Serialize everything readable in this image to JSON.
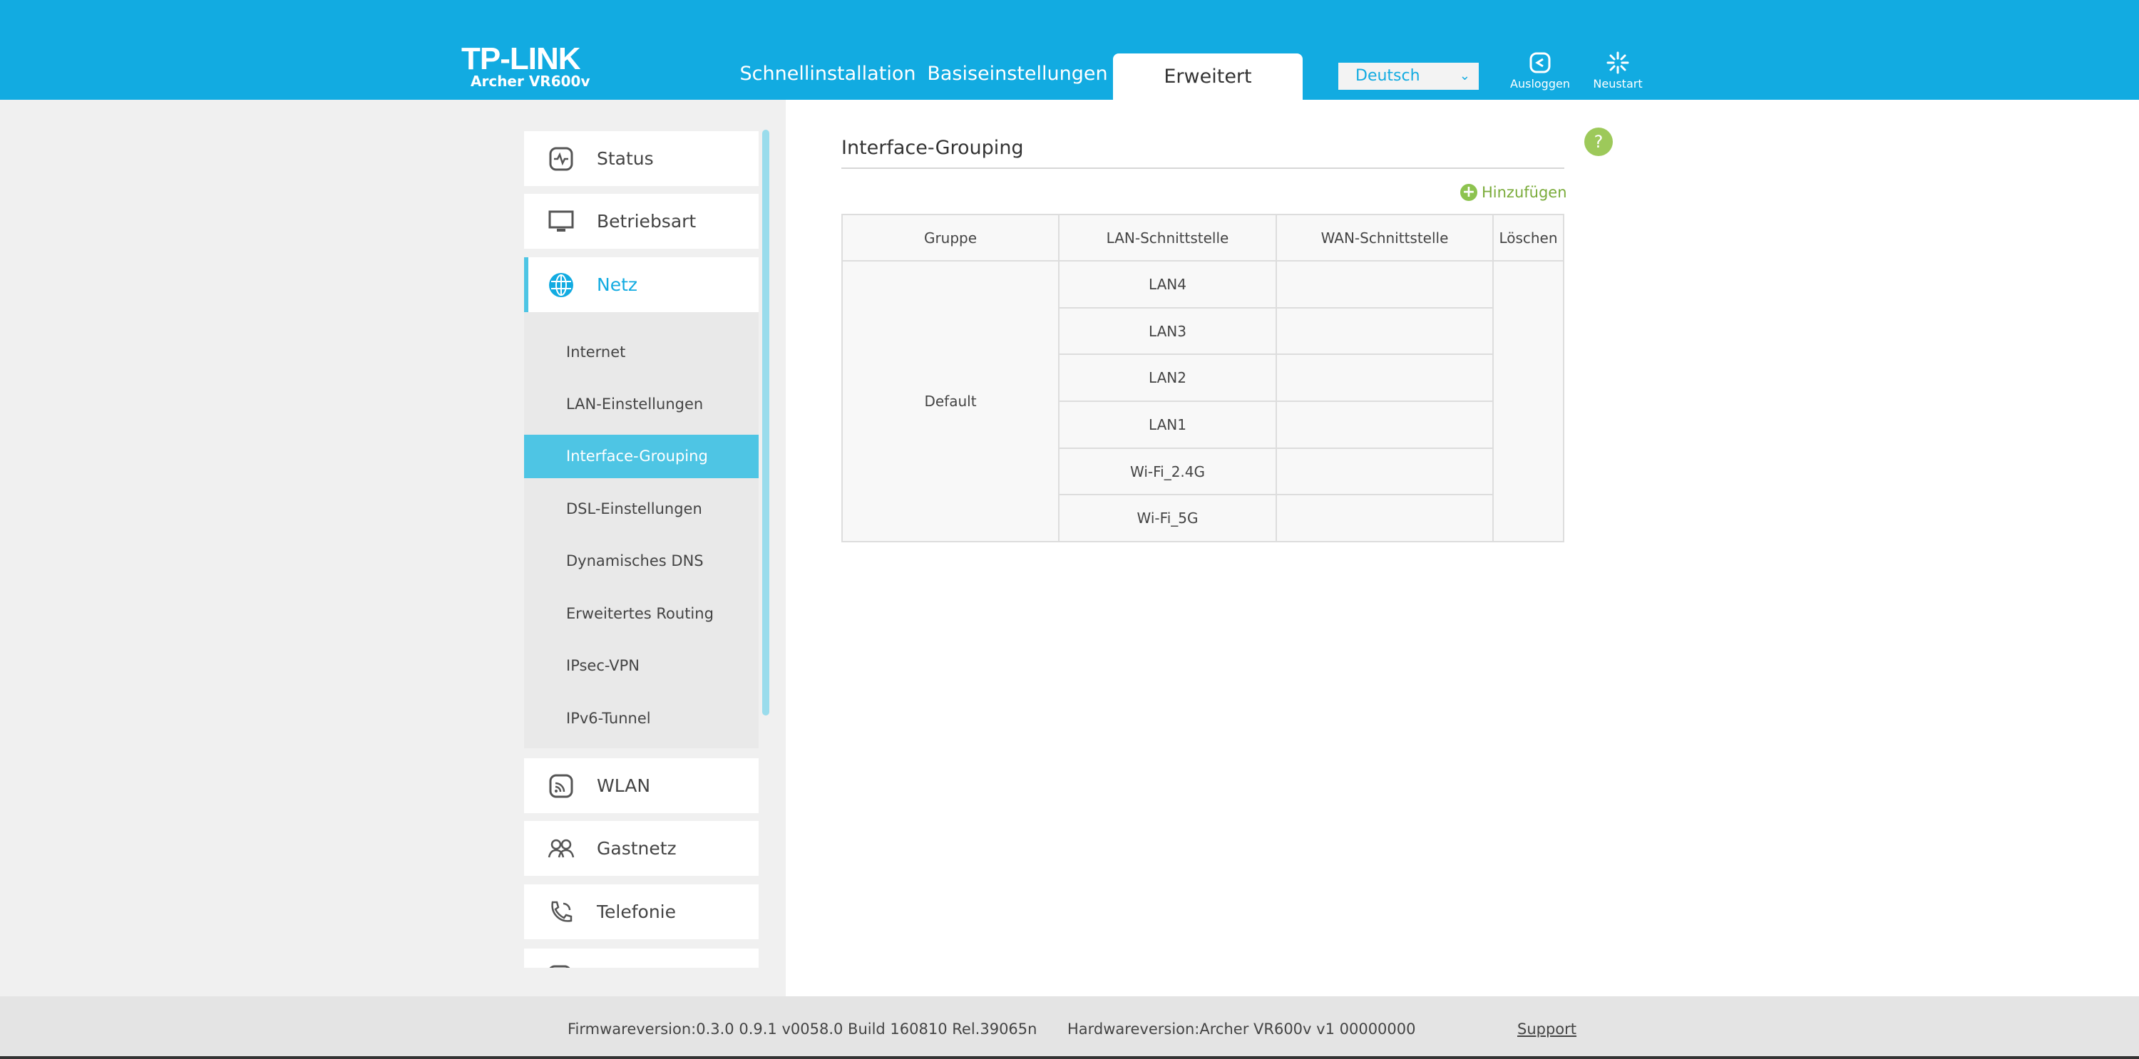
{
  "header": {
    "logo": "TP-LINK",
    "model": "Archer VR600v",
    "tabs": [
      "Schnellinstallation",
      "Basiseinstellungen",
      "Erweitert"
    ],
    "active_tab": "Erweitert",
    "language": "Deutsch",
    "logout": "Ausloggen",
    "reboot": "Neustart",
    "color": "#12abe1"
  },
  "sidebar": {
    "items": [
      {
        "label": "Status",
        "icon": "status-icon"
      },
      {
        "label": "Betriebsart",
        "icon": "monitor-icon"
      },
      {
        "label": "Netz",
        "icon": "globe-icon",
        "active": true
      },
      {
        "label": "WLAN",
        "icon": "wifi-icon"
      },
      {
        "label": "Gastnetz",
        "icon": "guest-icon"
      },
      {
        "label": "Telefonie",
        "icon": "phone-icon"
      }
    ],
    "sub_items": [
      "Internet",
      "LAN-Einstellungen",
      "Interface-Grouping",
      "DSL-Einstellungen",
      "Dynamisches DNS",
      "Erweitertes Routing",
      "IPsec-VPN",
      "IPv6-Tunnel"
    ],
    "active_sub": "Interface-Grouping"
  },
  "main": {
    "title": "Interface-Grouping",
    "help": "?",
    "add": "Hinzufügen",
    "table": {
      "headers": [
        "Gruppe",
        "LAN-Schnittstelle",
        "WAN-Schnittstelle",
        "Löschen"
      ],
      "group": "Default",
      "lan": [
        "LAN4",
        "LAN3",
        "LAN2",
        "LAN1",
        "Wi-Fi_2.4G",
        "Wi-Fi_5G"
      ]
    }
  },
  "footer": {
    "firmware": "Firmwareversion:0.3.0 0.9.1 v0058.0 Build 160810 Rel.39065n",
    "hardware": "Hardwareversion:Archer VR600v v1 00000000",
    "support": "Support"
  }
}
